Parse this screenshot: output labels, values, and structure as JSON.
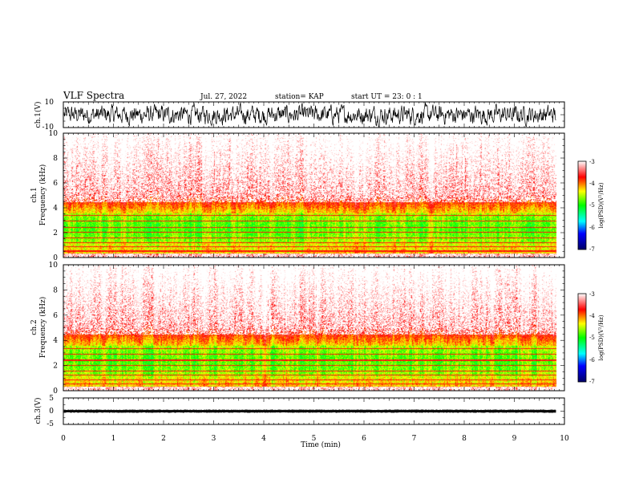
{
  "header": {
    "title": "VLF Spectra",
    "date": "Jul. 27, 2022",
    "station": "station= KAP",
    "start": "start UT =  23: 0  : 1"
  },
  "chart_data": [
    {
      "type": "line",
      "name": "ch1-waveform",
      "ylabel": "ch.1(V)",
      "ylim": [
        -10,
        10
      ],
      "yticks": [
        "10",
        "-10"
      ],
      "xlim": [
        0,
        10
      ],
      "x_end": 9.83,
      "amplitude_range": [
        -10,
        10
      ]
    },
    {
      "type": "heatmap",
      "name": "ch1-spectrogram",
      "ylabel_channel": "ch.1",
      "ylabel": "Frequency (kHz)",
      "ylim": [
        0,
        10
      ],
      "yticks": [
        "0",
        "2",
        "4",
        "6",
        "8",
        "10"
      ],
      "xlim": [
        0,
        10
      ],
      "x_end": 9.83,
      "colorbar": {
        "label": "log(PSD)(V²/Hz)",
        "range": [
          -7,
          -3
        ],
        "ticks": [
          "-3",
          "-4",
          "-5",
          "-6",
          "-7"
        ],
        "colors": [
          "#000066",
          "#0000ff",
          "#00ffff",
          "#00ff00",
          "#ffff00",
          "#ff0000",
          "#ffffff"
        ]
      }
    },
    {
      "type": "heatmap",
      "name": "ch2-spectrogram",
      "ylabel_channel": "ch.2",
      "ylabel": "Frequency (kHz)",
      "ylim": [
        0,
        10
      ],
      "yticks": [
        "0",
        "2",
        "4",
        "6",
        "8",
        "10"
      ],
      "xlim": [
        0,
        10
      ],
      "x_end": 9.83,
      "colorbar": {
        "label": "log(PSD)(V²/Hz)",
        "range": [
          -7,
          -3
        ],
        "ticks": [
          "-3",
          "-4",
          "-5",
          "-6",
          "-7"
        ],
        "colors": [
          "#000066",
          "#0000ff",
          "#00ffff",
          "#00ff00",
          "#ffff00",
          "#ff0000",
          "#ffffff"
        ]
      }
    },
    {
      "type": "line",
      "name": "ch3-waveform",
      "ylabel": "ch.3(V)",
      "ylim": [
        -5,
        5
      ],
      "yticks": [
        "5",
        "0",
        "-5"
      ],
      "xlim": [
        0,
        10
      ],
      "x_end": 9.83,
      "band": [
        -0.4,
        0.4
      ],
      "center": 0.1
    }
  ],
  "xaxis": {
    "label": "Time (min)",
    "ticks": [
      "0",
      "1",
      "2",
      "3",
      "4",
      "5",
      "6",
      "7",
      "8",
      "9",
      "10"
    ]
  }
}
